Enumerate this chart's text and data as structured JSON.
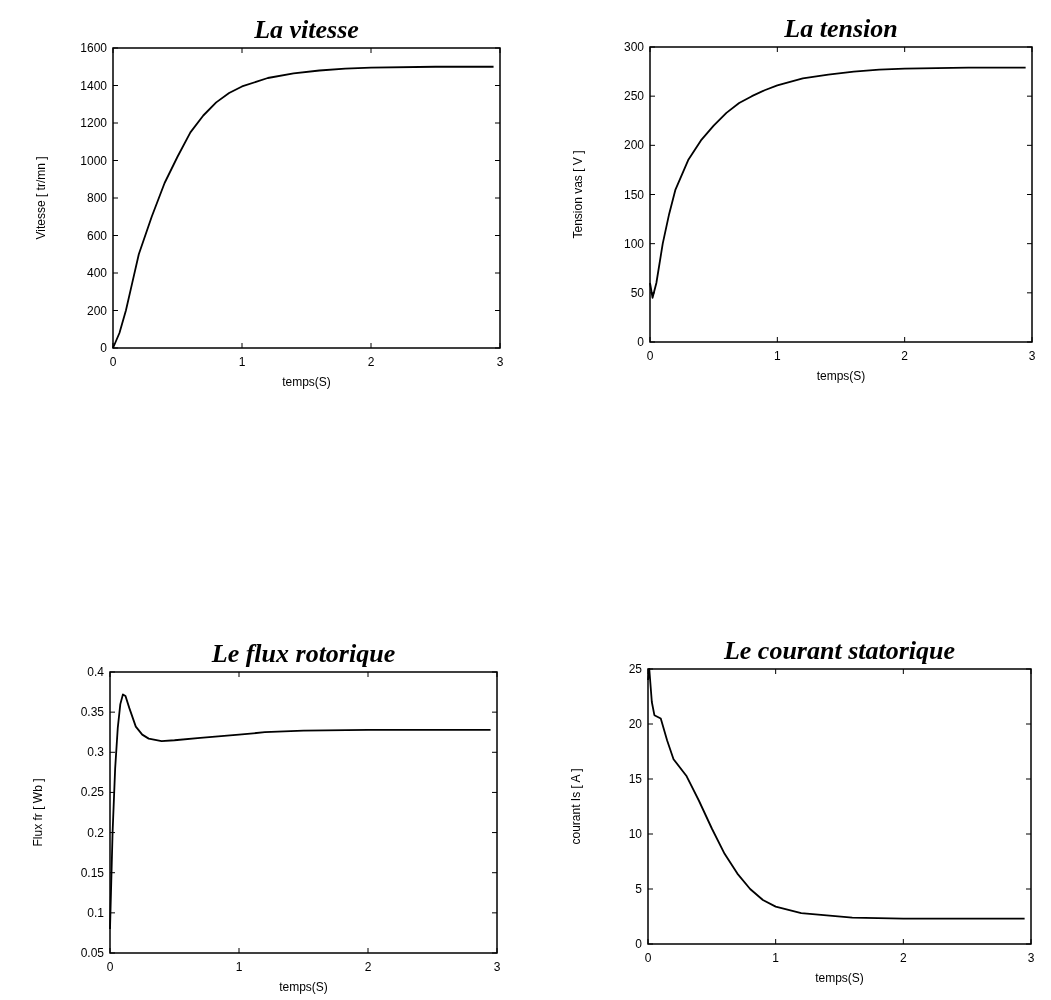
{
  "chart_data": [
    {
      "type": "line",
      "title": "La vitesse",
      "xlabel": "temps(S)",
      "ylabel": "Vitesse [ tr/mn ]",
      "xlim": [
        0,
        3
      ],
      "xticks": [
        0,
        1,
        2,
        3
      ],
      "ylim": [
        0,
        1600
      ],
      "yticks": [
        0,
        200,
        400,
        600,
        800,
        1000,
        1200,
        1400,
        1600
      ],
      "grid": false,
      "series": [
        {
          "color": "#000000",
          "x": [
            0,
            0.05,
            0.1,
            0.15,
            0.2,
            0.3,
            0.4,
            0.5,
            0.6,
            0.7,
            0.8,
            0.9,
            1.0,
            1.2,
            1.4,
            1.6,
            1.8,
            2.0,
            2.5,
            2.95
          ],
          "values": [
            0,
            80,
            200,
            350,
            500,
            700,
            880,
            1020,
            1150,
            1240,
            1310,
            1360,
            1395,
            1440,
            1465,
            1480,
            1490,
            1495,
            1500,
            1500
          ]
        }
      ]
    },
    {
      "type": "line",
      "title": "La tension",
      "xlabel": "temps(S)",
      "ylabel": "Tension vas [ V ]",
      "xlim": [
        0,
        3
      ],
      "xticks": [
        0,
        1,
        2,
        3
      ],
      "ylim": [
        0,
        300
      ],
      "yticks": [
        0,
        50,
        100,
        150,
        200,
        250,
        300
      ],
      "grid": false,
      "series": [
        {
          "color": "#000000",
          "x": [
            0,
            0.02,
            0.05,
            0.1,
            0.15,
            0.2,
            0.3,
            0.4,
            0.5,
            0.6,
            0.7,
            0.8,
            0.9,
            1.0,
            1.2,
            1.4,
            1.6,
            1.8,
            2.0,
            2.5,
            2.95
          ],
          "values": [
            60,
            45,
            60,
            100,
            130,
            155,
            185,
            205,
            220,
            233,
            243,
            250,
            256,
            261,
            268,
            272,
            275,
            277,
            278,
            279,
            279
          ]
        }
      ]
    },
    {
      "type": "line",
      "title": "Le flux rotorique",
      "xlabel": "temps(S)",
      "ylabel": "Flux fr [ Wb ]",
      "xlim": [
        0,
        3
      ],
      "xticks": [
        0,
        1,
        2,
        3
      ],
      "ylim": [
        0.05,
        0.4
      ],
      "yticks": [
        0.05,
        0.1,
        0.15,
        0.2,
        0.25,
        0.3,
        0.35,
        0.4
      ],
      "grid": false,
      "series": [
        {
          "color": "#000000",
          "x": [
            0,
            0.02,
            0.04,
            0.06,
            0.08,
            0.1,
            0.12,
            0.15,
            0.2,
            0.25,
            0.3,
            0.4,
            0.5,
            0.7,
            1.0,
            1.2,
            1.5,
            2.0,
            2.95
          ],
          "values": [
            0.08,
            0.2,
            0.28,
            0.33,
            0.36,
            0.372,
            0.37,
            0.355,
            0.332,
            0.322,
            0.317,
            0.314,
            0.315,
            0.318,
            0.322,
            0.325,
            0.327,
            0.328,
            0.328
          ]
        }
      ]
    },
    {
      "type": "line",
      "title": "Le courant statorique",
      "xlabel": "temps(S)",
      "ylabel": "courant Is [ A ]",
      "xlim": [
        0,
        3
      ],
      "xticks": [
        0,
        1,
        2,
        3
      ],
      "ylim": [
        0,
        25
      ],
      "yticks": [
        0,
        5,
        10,
        15,
        20,
        25
      ],
      "grid": false,
      "series": [
        {
          "color": "#000000",
          "x": [
            0,
            0.01,
            0.03,
            0.05,
            0.1,
            0.15,
            0.2,
            0.3,
            0.4,
            0.5,
            0.6,
            0.7,
            0.8,
            0.9,
            1.0,
            1.2,
            1.4,
            1.6,
            2.0,
            2.95
          ],
          "values": [
            24,
            25,
            22,
            20.8,
            20.5,
            18.5,
            16.8,
            15.3,
            13,
            10.5,
            8.2,
            6.4,
            5,
            4,
            3.4,
            2.8,
            2.6,
            2.4,
            2.3,
            2.3
          ]
        }
      ]
    }
  ]
}
